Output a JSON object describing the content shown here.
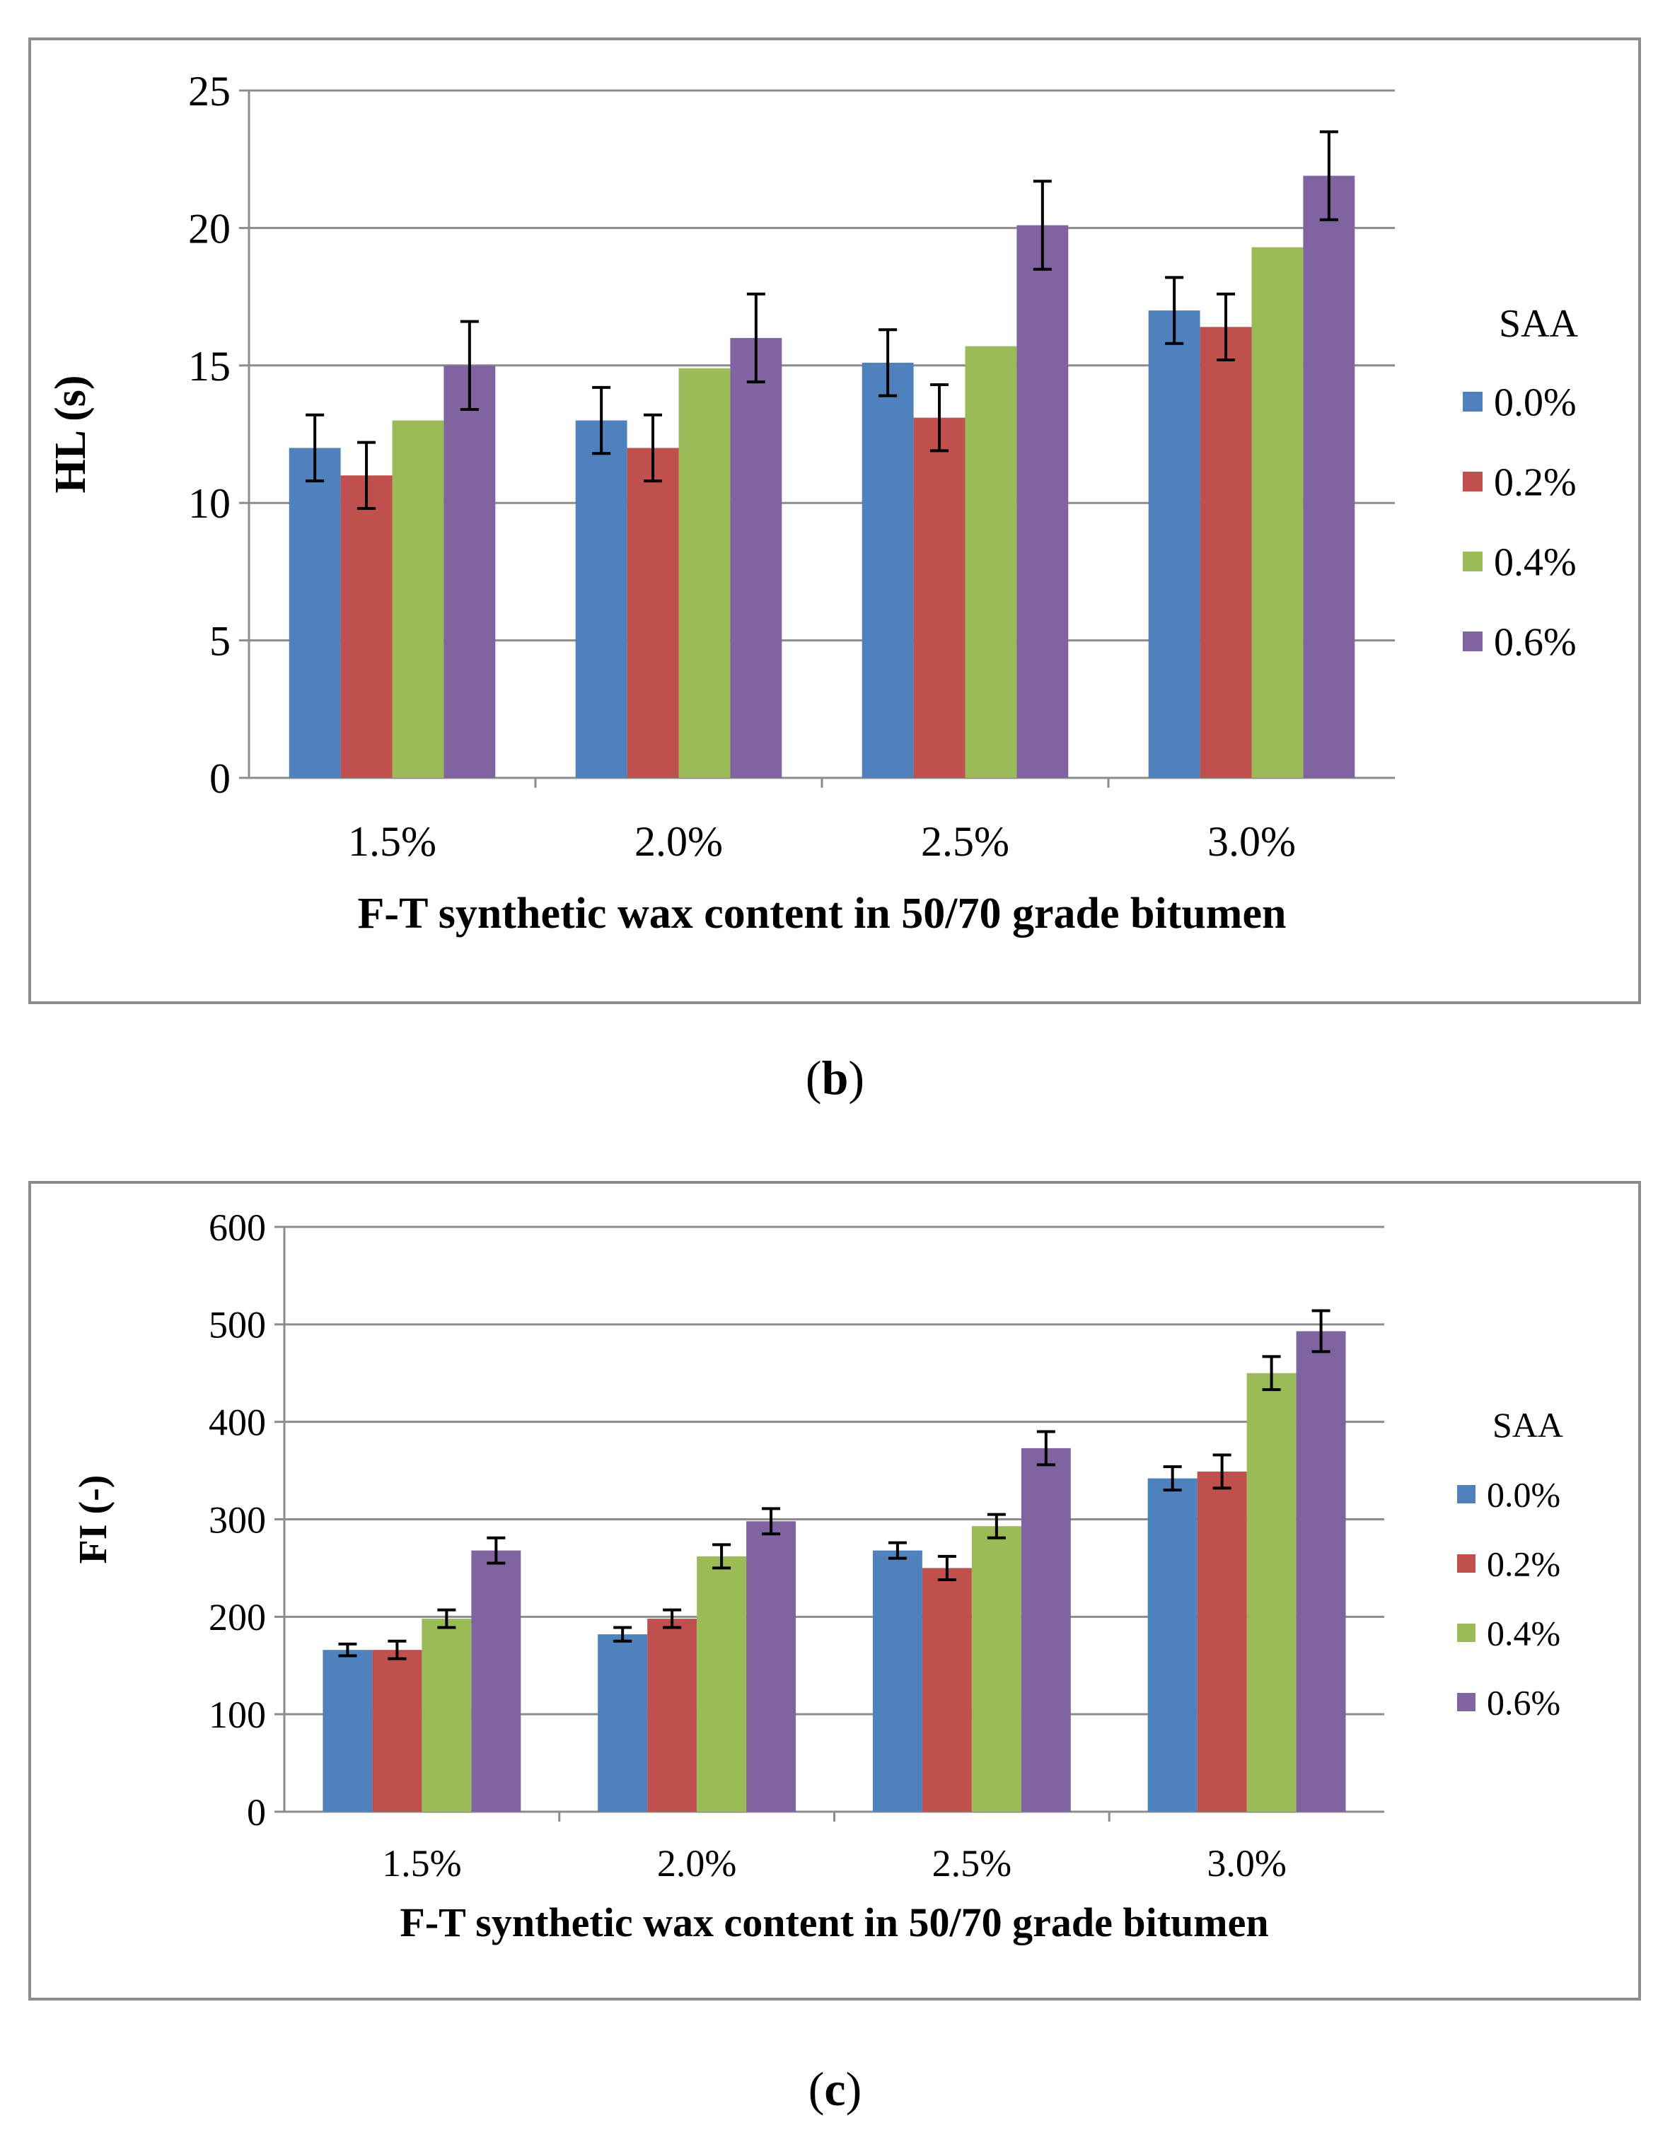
{
  "colors": {
    "0.0%": "#4F81BD",
    "0.2%": "#C0504D",
    "0.4%": "#9BBB59",
    "0.6%": "#8064A2",
    "gridline": "#8c8c8c",
    "frame": "#8c8c8c",
    "error_bar": "#000000"
  },
  "panels": [
    {
      "open": "(",
      "letter": "b",
      "close": ")"
    },
    {
      "open": "(",
      "letter": "c",
      "close": ")"
    }
  ],
  "chart_data": [
    {
      "type": "bar",
      "panel": "b",
      "title": "",
      "xlabel": "F-T synthetic wax content in 50/70 grade bitumen",
      "ylabel": "HL (s)",
      "categories": [
        "1.5%",
        "2.0%",
        "2.5%",
        "3.0%"
      ],
      "ylim": [
        0,
        25
      ],
      "yticks": [
        0,
        5,
        10,
        15,
        20,
        25
      ],
      "grid": true,
      "legend_title": "SAA",
      "legend_position": "right",
      "series": [
        {
          "name": "0.0%",
          "values": [
            12.0,
            13.0,
            15.1,
            17.0
          ],
          "errors": [
            1.2,
            1.2,
            1.2,
            1.2
          ]
        },
        {
          "name": "0.2%",
          "values": [
            11.0,
            12.0,
            13.1,
            16.4
          ],
          "errors": [
            1.2,
            1.2,
            1.2,
            1.2
          ]
        },
        {
          "name": "0.4%",
          "values": [
            13.0,
            14.9,
            15.7,
            19.3
          ],
          "errors": [
            null,
            null,
            null,
            null
          ]
        },
        {
          "name": "0.6%",
          "values": [
            15.0,
            16.0,
            20.1,
            21.9
          ],
          "errors": [
            1.6,
            1.6,
            1.6,
            1.6
          ]
        }
      ]
    },
    {
      "type": "bar",
      "panel": "c",
      "title": "",
      "xlabel": "F-T synthetic wax content in 50/70 grade bitumen",
      "ylabel": "FI (-)",
      "categories": [
        "1.5%",
        "2.0%",
        "2.5%",
        "3.0%"
      ],
      "ylim": [
        0,
        600
      ],
      "yticks": [
        0,
        100,
        200,
        300,
        400,
        500,
        600
      ],
      "grid": true,
      "legend_title": "SAA",
      "legend_position": "right",
      "series": [
        {
          "name": "0.0%",
          "values": [
            166,
            182,
            268,
            342
          ],
          "errors": [
            6,
            7,
            8,
            12
          ]
        },
        {
          "name": "0.2%",
          "values": [
            166,
            198,
            250,
            349
          ],
          "errors": [
            9,
            9,
            12,
            17
          ]
        },
        {
          "name": "0.4%",
          "values": [
            198,
            262,
            293,
            450
          ],
          "errors": [
            9,
            12,
            12,
            17
          ]
        },
        {
          "name": "0.6%",
          "values": [
            268,
            298,
            373,
            493
          ],
          "errors": [
            13,
            13,
            17,
            21
          ]
        }
      ]
    }
  ]
}
